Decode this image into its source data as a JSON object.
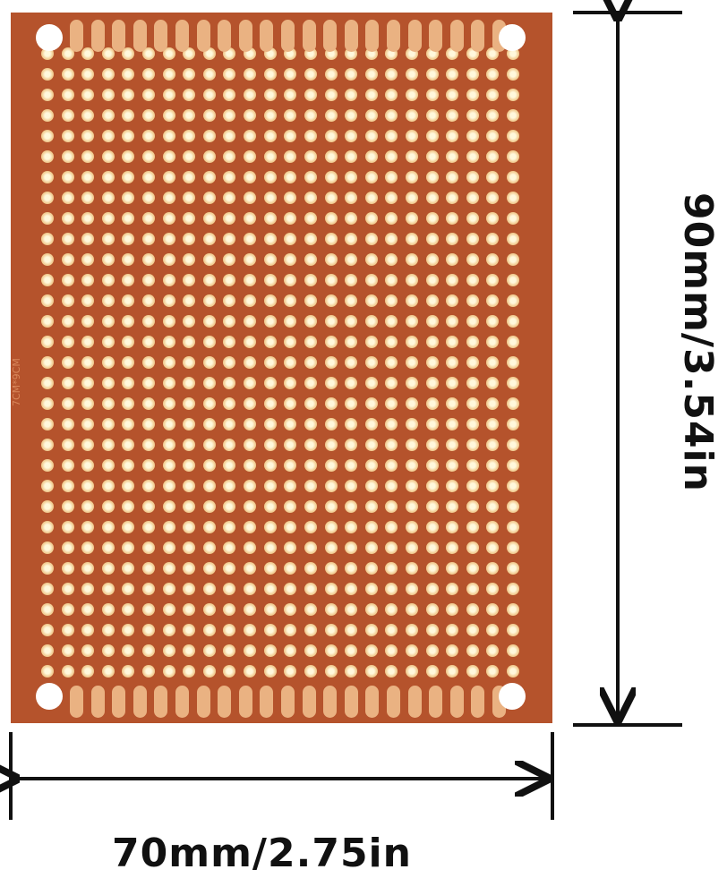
{
  "product": {
    "board_label": "7CM*9CM",
    "board_color": "#b5532c",
    "pad_color": "#f3cf96",
    "grid_columns": 24,
    "grid_rows": 31
  },
  "dimensions": {
    "width_label": "70mm/2.75in",
    "height_label": "90mm/3.54in"
  }
}
